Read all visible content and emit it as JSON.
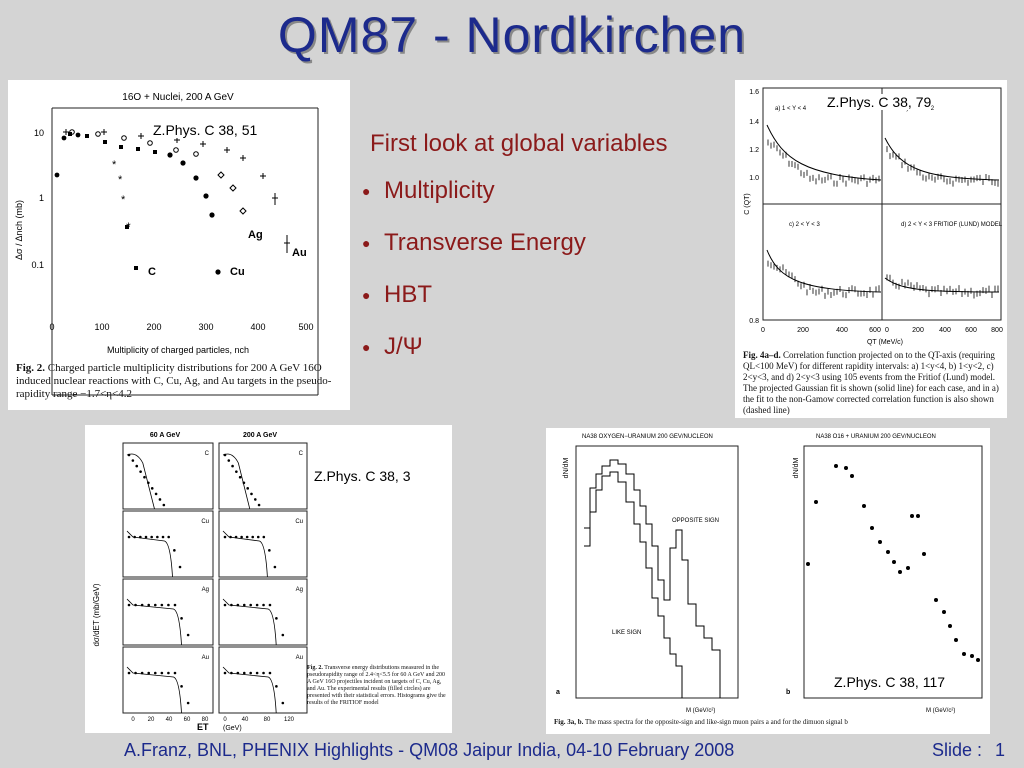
{
  "slide": {
    "title": "QM87 - Nordkirchen",
    "bullets_heading": "First look at global variables",
    "bullets": [
      "Multiplicity",
      "Transverse Energy",
      "HBT",
      "J/Ψ"
    ],
    "footer": "A.Franz, BNL, PHENIX Highlights - QM08 Jaipur India, 04-10 February 2008",
    "slide_label": "Slide :",
    "slide_number": "1"
  },
  "fig_multiplicity": {
    "reference": "Z.Phys. C 38, 51",
    "plot_title": "16O + Nuclei, 200 A GeV",
    "xlabel": "Multiplicity of charged particles, nch",
    "ylabel": "Δσ / Δnch (mb)",
    "y_ticks": [
      "10",
      "1",
      "0.1"
    ],
    "x_ticks": [
      "0",
      "100",
      "200",
      "300",
      "400",
      "500"
    ],
    "target_labels": [
      "C",
      "Cu",
      "Ag",
      "Au"
    ],
    "caption_bold": "Fig. 2.",
    "caption": "Charged particle multiplicity distributions for 200 A GeV 16O induced nuclear reactions with C, Cu, Ag, and Au targets in the pseudo-rapidity range −1.7<η<4.2"
  },
  "fig_hbt": {
    "reference": "Z.Phys. C 38, 79",
    "panel_labels": [
      "a)  1 < Y < 4",
      "b)  1 < Y < 2",
      "c)  2 < Y < 3",
      "d)  2 < Y < 3  FRITIOF (LUND) MODEL"
    ],
    "y_ticks": [
      "1.6",
      "1.4",
      "1.2",
      "1.0",
      "0.8"
    ],
    "x_ticks": [
      "0",
      "200",
      "400",
      "600",
      "0",
      "200",
      "400",
      "600",
      "800"
    ],
    "xlabel": "QT (MeV/c)",
    "ylabel": "C (QT)",
    "caption_bold": "Fig. 4a–d.",
    "caption": "Correlation function projected on to the QT-axis (requiring QL<100 MeV) for different rapidity intervals: a) 1<y<4, b) 1<y<2, c) 2<y<3, and d) 2<y<3 using 105 events from the Fritiof (Lund) model. The projected Gaussian fit is shown (solid line) for each case, and in a) the fit to the non-Gamow corrected correlation function is also shown (dashed line)"
  },
  "fig_et": {
    "reference": "Z.Phys. C 38, 3",
    "columns": [
      "60 A GeV",
      "200 A GeV"
    ],
    "rows": [
      "C",
      "Cu",
      "Ag",
      "Au"
    ],
    "ylabel": "dσ/dET (mb/GeV)",
    "xlabel": "ET",
    "xunit": "(GeV)",
    "x_ticks_left": [
      "0",
      "20",
      "40",
      "60",
      "80"
    ],
    "x_ticks_right": [
      "0",
      "40",
      "80",
      "120"
    ],
    "caption_bold": "Fig. 2.",
    "caption": "Transverse energy distributions measured in the pseudorapidity range of 2.4<η<5.5 for 60 A GeV and 200 A GeV 16O projectiles incident on targets of C, Cu, Ag, and Au. The experimental results (filled circles) are presented with their statistical errors. Histograms give the results of the FRITIOF model"
  },
  "fig_dimuon": {
    "reference": "Z.Phys. C 38, 117",
    "left_title": "NA38  OXYGEN−URANIUM  200 GEV/NUCLEON",
    "right_title": "NA38  O16 + URANIUM  200 GEV/NUCLEON",
    "left_labels": [
      "OPPOSITE SIGN",
      "LIKE SIGN"
    ],
    "panel_letters": [
      "a",
      "b"
    ],
    "ylabel": "dN/dM",
    "xlabel": "M (GeV/c²)",
    "caption_bold": "Fig. 3a, b.",
    "caption": "The mass spectra for the opposite-sign and like-sign muon pairs a and for the dimuon signal b"
  }
}
